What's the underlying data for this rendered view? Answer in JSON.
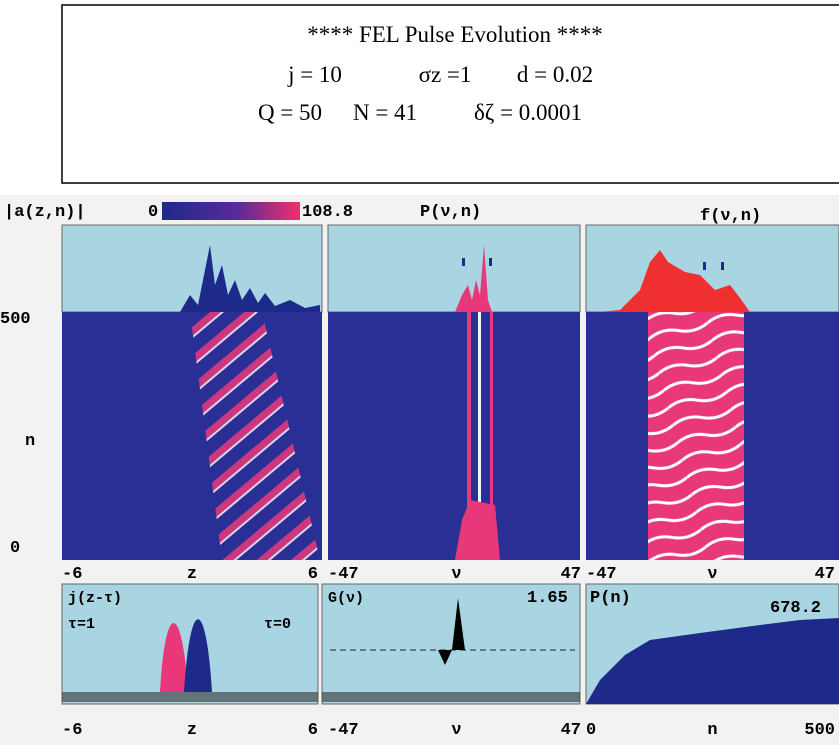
{
  "header": {
    "lines": [
      "****   FEL Pulse Evolution   ****"
    ],
    "params_1": [
      "j = 10",
      "σz =1",
      "d = 0.02"
    ],
    "params_2": [
      "Q = 50",
      "N = 41",
      "δζ = 0.0001"
    ]
  },
  "figure": {
    "top_labels": {
      "amplitude": "|a(z,n)|",
      "scale_min": "0",
      "scale_max": "108.8",
      "power_spectrum": "P(ν,n)",
      "f_spectrum": "f(ν,n)"
    },
    "n_axis": {
      "max": "500",
      "label": "n",
      "min": "0"
    },
    "map_axes": [
      [
        "-6",
        "z",
        "6"
      ],
      [
        "-47",
        "ν",
        "47"
      ],
      [
        "-47",
        "ν",
        "47"
      ]
    ],
    "bottom_panels": {
      "current": {
        "title": "j(z-τ)",
        "left_tag": "τ=1",
        "right_tag": "τ=0"
      },
      "gain": {
        "title": "G(ν)",
        "max": "1.65"
      },
      "power": {
        "title": "P(n)",
        "max": "678.2"
      }
    },
    "bottom_axes": [
      [
        "-6",
        "z",
        "6"
      ],
      [
        "-47",
        "ν",
        "47"
      ],
      [
        "0",
        "n",
        "500"
      ]
    ]
  }
}
